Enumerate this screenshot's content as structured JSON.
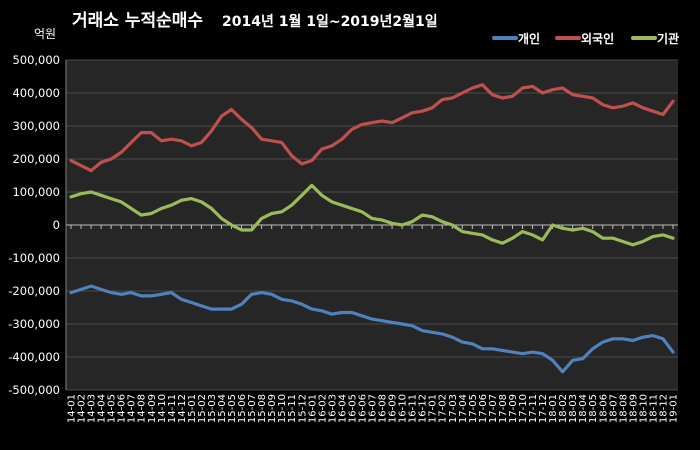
{
  "chart_data": {
    "type": "line",
    "title": "거래소 누적순매수",
    "subtitle": "2014년 1월 1일~2019년2월1일",
    "unit_label": "억원",
    "ylim": [
      -500000,
      500000
    ],
    "y_ticks": [
      "500,000",
      "400,000",
      "300,000",
      "200,000",
      "100,000",
      "0",
      "-100,000",
      "-200,000",
      "-300,000",
      "-400,000",
      "-500,000"
    ],
    "grid": true,
    "legend_position": "top-right",
    "x": [
      "14-01",
      "14-02",
      "14-03",
      "14-04",
      "14-05",
      "14-06",
      "14-07",
      "14-08",
      "14-09",
      "14-10",
      "14-11",
      "14-12",
      "15-01",
      "15-02",
      "15-03",
      "15-04",
      "15-05",
      "15-06",
      "15-07",
      "15-08",
      "15-09",
      "15-10",
      "15-11",
      "15-12",
      "16-01",
      "16-02",
      "16-03",
      "16-04",
      "16-05",
      "16-06",
      "16-07",
      "16-08",
      "16-09",
      "16-10",
      "16-11",
      "16-12",
      "17-01",
      "17-02",
      "17-03",
      "17-04",
      "17-05",
      "17-06",
      "17-07",
      "17-08",
      "17-09",
      "17-10",
      "17-11",
      "17-12",
      "18-01",
      "18-02",
      "18-03",
      "18-04",
      "18-05",
      "18-06",
      "18-07",
      "18-08",
      "18-09",
      "18-10",
      "18-11",
      "18-12",
      "19-01"
    ],
    "series": [
      {
        "name": "개인",
        "color": "#4f81bd",
        "values": [
          -205000,
          -195000,
          -185000,
          -195000,
          -205000,
          -210000,
          -205000,
          -215000,
          -215000,
          -210000,
          -205000,
          -225000,
          -235000,
          -245000,
          -255000,
          -255000,
          -255000,
          -240000,
          -210000,
          -205000,
          -210000,
          -225000,
          -230000,
          -240000,
          -255000,
          -260000,
          -270000,
          -265000,
          -265000,
          -275000,
          -285000,
          -290000,
          -295000,
          -300000,
          -305000,
          -320000,
          -325000,
          -330000,
          -340000,
          -355000,
          -360000,
          -375000,
          -375000,
          -380000,
          -385000,
          -390000,
          -385000,
          -390000,
          -410000,
          -445000,
          -410000,
          -405000,
          -375000,
          -355000,
          -345000,
          -345000,
          -350000,
          -340000,
          -335000,
          -345000,
          -385000
        ]
      },
      {
        "name": "외국인",
        "color": "#c0504d",
        "values": [
          195000,
          180000,
          165000,
          190000,
          200000,
          220000,
          250000,
          280000,
          280000,
          255000,
          260000,
          255000,
          240000,
          250000,
          285000,
          330000,
          350000,
          320000,
          295000,
          260000,
          255000,
          250000,
          210000,
          185000,
          195000,
          230000,
          240000,
          260000,
          290000,
          305000,
          310000,
          315000,
          310000,
          325000,
          340000,
          345000,
          355000,
          380000,
          385000,
          400000,
          415000,
          425000,
          395000,
          385000,
          390000,
          415000,
          420000,
          400000,
          410000,
          415000,
          395000,
          390000,
          385000,
          365000,
          355000,
          360000,
          370000,
          355000,
          345000,
          335000,
          375000
        ]
      },
      {
        "name": "기관",
        "color": "#9bbb59",
        "values": [
          85000,
          95000,
          100000,
          90000,
          80000,
          70000,
          50000,
          30000,
          35000,
          50000,
          60000,
          75000,
          80000,
          70000,
          50000,
          20000,
          0,
          -15000,
          -15000,
          20000,
          35000,
          40000,
          60000,
          90000,
          120000,
          90000,
          70000,
          60000,
          50000,
          40000,
          20000,
          15000,
          5000,
          0,
          10000,
          30000,
          25000,
          10000,
          0,
          -20000,
          -25000,
          -30000,
          -45000,
          -55000,
          -40000,
          -20000,
          -30000,
          -45000,
          0,
          -10000,
          -15000,
          -10000,
          -20000,
          -40000,
          -40000,
          -50000,
          -60000,
          -50000,
          -35000,
          -30000,
          -40000
        ]
      }
    ]
  }
}
